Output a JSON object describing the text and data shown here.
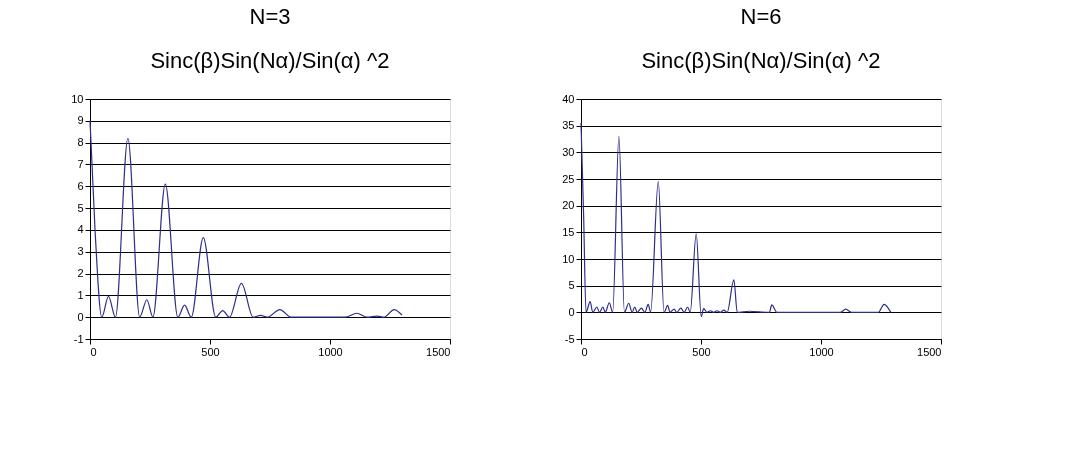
{
  "chart_data": [
    {
      "type": "line",
      "title": "N=3",
      "subtitle": "Sinc(β)Sin(Nα)/Sin(α) ^2",
      "xlim": [
        0,
        1500
      ],
      "xticks": [
        0,
        500,
        1000,
        1500
      ],
      "ylim": [
        -1,
        10
      ],
      "yticks": [
        -1,
        0,
        1,
        2,
        3,
        4,
        5,
        6,
        7,
        8,
        9,
        10
      ],
      "grid": "y",
      "series": [
        {
          "color": "#2e2e8a",
          "x": [
            0,
            21,
            49,
            77,
            106,
            158,
            207,
            237,
            262,
            314,
            366,
            394,
            422,
            472,
            524,
            553,
            581,
            631,
            680,
            711,
            739,
            791,
            838,
            1063,
            1112,
            1155,
            1197,
            1225,
            1267,
            1300
          ],
          "values": [
            9,
            4,
            0,
            0.95,
            0,
            8.2,
            0,
            0.8,
            0,
            6.1,
            0,
            0.55,
            0,
            3.65,
            0,
            0.3,
            0,
            1.55,
            0,
            0.08,
            0,
            0.35,
            0,
            0,
            0.18,
            0,
            0.05,
            0,
            0.35,
            0.1
          ]
        }
      ]
    },
    {
      "type": "line",
      "title": "N=6",
      "subtitle": "Sinc(β)Sin(Nα)/Sin(α) ^2",
      "xlim": [
        0,
        1500
      ],
      "xticks": [
        0,
        500,
        1000,
        1500
      ],
      "ylim": [
        -5,
        40
      ],
      "yticks": [
        -5,
        0,
        5,
        10,
        15,
        20,
        25,
        30,
        35,
        40
      ],
      "grid": "y",
      "series": [
        {
          "color": "#2e2e8a",
          "x": [
            0,
            11,
            21,
            38,
            49,
            66,
            77,
            91,
            101,
            118,
            132,
            158,
            181,
            199,
            213,
            224,
            234,
            252,
            266,
            280,
            290,
            322,
            346,
            361,
            371,
            388,
            399,
            416,
            430,
            444,
            455,
            480,
            501,
            511,
            525,
            539,
            553,
            567,
            581,
            595,
            609,
            637,
            651,
            700,
            785,
            795,
            816,
            1081,
            1103,
            1127,
            1239,
            1263,
            1291
          ],
          "values": [
            35.5,
            18,
            0,
            2,
            0,
            1,
            0,
            1,
            0,
            1.8,
            0,
            33,
            0,
            1.7,
            0,
            1,
            0,
            0.8,
            0,
            1.5,
            0,
            24.5,
            0,
            1.3,
            0,
            0.6,
            0,
            0.8,
            0,
            1,
            0,
            14.7,
            -0.8,
            0.7,
            0,
            0.3,
            0,
            0.3,
            0,
            0.4,
            0,
            6.1,
            0,
            0.2,
            0,
            1.4,
            0,
            0,
            0.6,
            0,
            0,
            1.5,
            0
          ]
        }
      ]
    }
  ]
}
